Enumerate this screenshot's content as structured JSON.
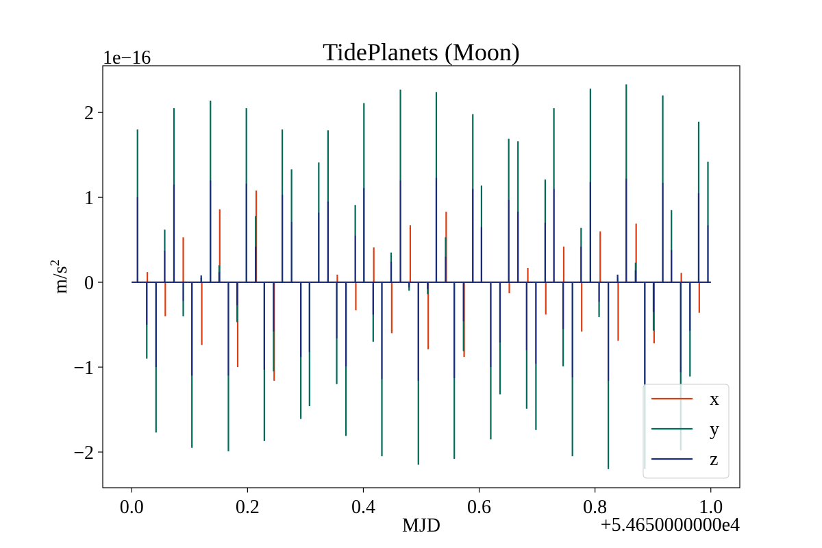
{
  "chart_data": {
    "type": "line",
    "title": "TidePlanets (Moon)",
    "xlabel": "MJD",
    "ylabel": "m/s",
    "ylabel_sup": "2",
    "x_offset_label": "+5.4650000000e4",
    "y_scale_label": "1e−16",
    "xlim": [
      -0.05,
      1.05
    ],
    "ylim": [
      -2.42,
      2.55
    ],
    "x_ticks": [
      0.0,
      0.2,
      0.4,
      0.6,
      0.8,
      1.0
    ],
    "x_tick_labels": [
      "0.0",
      "0.2",
      "0.4",
      "0.6",
      "0.8",
      "1.0"
    ],
    "y_ticks": [
      -2,
      -1,
      0,
      1,
      2
    ],
    "y_tick_labels": [
      "−2",
      "−1",
      "0",
      "1",
      "2"
    ],
    "grid": false,
    "legend_position": "lower-right",
    "series": [
      {
        "name": "x",
        "color": "#dd3d12",
        "spikes": [
          {
            "x": 0.027,
            "y": 0.12
          },
          {
            "x": 0.058,
            "y": -0.4
          },
          {
            "x": 0.089,
            "y": 0.53
          },
          {
            "x": 0.121,
            "y": -0.74
          },
          {
            "x": 0.152,
            "y": 0.86
          },
          {
            "x": 0.183,
            "y": -1.0
          },
          {
            "x": 0.215,
            "y": 1.08
          },
          {
            "x": 0.246,
            "y": -1.16
          },
          {
            "x": 0.355,
            "y": 0.09
          },
          {
            "x": 0.387,
            "y": -0.33
          },
          {
            "x": 0.418,
            "y": 0.41
          },
          {
            "x": 0.449,
            "y": -0.6
          },
          {
            "x": 0.481,
            "y": 0.67
          },
          {
            "x": 0.512,
            "y": -0.79
          },
          {
            "x": 0.543,
            "y": 0.83
          },
          {
            "x": 0.574,
            "y": -0.88
          },
          {
            "x": 0.652,
            "y": -0.13
          },
          {
            "x": 0.684,
            "y": 0.17
          },
          {
            "x": 0.715,
            "y": -0.38
          },
          {
            "x": 0.746,
            "y": 0.42
          },
          {
            "x": 0.777,
            "y": -0.58
          },
          {
            "x": 0.809,
            "y": 0.6
          },
          {
            "x": 0.84,
            "y": -0.69
          },
          {
            "x": 0.871,
            "y": 0.69
          },
          {
            "x": 0.902,
            "y": -0.72
          },
          {
            "x": 0.949,
            "y": 0.11
          },
          {
            "x": 0.98,
            "y": -0.36
          }
        ]
      },
      {
        "name": "y",
        "color": "#006b5a",
        "spikes": [
          {
            "x": 0.01,
            "y": 1.8
          },
          {
            "x": 0.026,
            "y": -0.9
          },
          {
            "x": 0.042,
            "y": -1.77
          },
          {
            "x": 0.057,
            "y": 0.62
          },
          {
            "x": 0.073,
            "y": 2.05
          },
          {
            "x": 0.089,
            "y": -0.4
          },
          {
            "x": 0.104,
            "y": -1.95
          },
          {
            "x": 0.12,
            "y": 0.05
          },
          {
            "x": 0.136,
            "y": 2.14
          },
          {
            "x": 0.151,
            "y": 0.2
          },
          {
            "x": 0.167,
            "y": -1.99
          },
          {
            "x": 0.182,
            "y": -0.47
          },
          {
            "x": 0.198,
            "y": 2.05
          },
          {
            "x": 0.214,
            "y": 0.78
          },
          {
            "x": 0.229,
            "y": -1.87
          },
          {
            "x": 0.245,
            "y": -1.05
          },
          {
            "x": 0.26,
            "y": 1.8
          },
          {
            "x": 0.276,
            "y": 1.33
          },
          {
            "x": 0.292,
            "y": -1.61
          },
          {
            "x": 0.307,
            "y": -1.46
          },
          {
            "x": 0.323,
            "y": 1.41
          },
          {
            "x": 0.339,
            "y": 1.79
          },
          {
            "x": 0.354,
            "y": -1.2
          },
          {
            "x": 0.37,
            "y": -1.81
          },
          {
            "x": 0.386,
            "y": 0.91
          },
          {
            "x": 0.401,
            "y": 2.11
          },
          {
            "x": 0.417,
            "y": -0.7
          },
          {
            "x": 0.432,
            "y": -2.05
          },
          {
            "x": 0.448,
            "y": 0.35
          },
          {
            "x": 0.464,
            "y": 2.27
          },
          {
            "x": 0.479,
            "y": -0.1
          },
          {
            "x": 0.495,
            "y": -2.15
          },
          {
            "x": 0.511,
            "y": -0.14
          },
          {
            "x": 0.526,
            "y": 2.24
          },
          {
            "x": 0.542,
            "y": 0.53
          },
          {
            "x": 0.557,
            "y": -2.08
          },
          {
            "x": 0.573,
            "y": -0.81
          },
          {
            "x": 0.589,
            "y": 1.98
          },
          {
            "x": 0.604,
            "y": 1.14
          },
          {
            "x": 0.62,
            "y": -1.85
          },
          {
            "x": 0.636,
            "y": -1.32
          },
          {
            "x": 0.651,
            "y": 1.69
          },
          {
            "x": 0.667,
            "y": 1.66
          },
          {
            "x": 0.682,
            "y": -1.49
          },
          {
            "x": 0.698,
            "y": -1.74
          },
          {
            "x": 0.714,
            "y": 1.21
          },
          {
            "x": 0.729,
            "y": 2.05
          },
          {
            "x": 0.745,
            "y": -0.99
          },
          {
            "x": 0.761,
            "y": -2.05
          },
          {
            "x": 0.776,
            "y": 0.64
          },
          {
            "x": 0.792,
            "y": 2.28
          },
          {
            "x": 0.807,
            "y": -0.41
          },
          {
            "x": 0.823,
            "y": -2.2
          },
          {
            "x": 0.839,
            "y": 0.05
          },
          {
            "x": 0.854,
            "y": 2.33
          },
          {
            "x": 0.87,
            "y": 0.23
          },
          {
            "x": 0.886,
            "y": -2.2
          },
          {
            "x": 0.901,
            "y": -0.57
          },
          {
            "x": 0.917,
            "y": 2.2
          },
          {
            "x": 0.932,
            "y": 0.85
          },
          {
            "x": 0.948,
            "y": -1.98
          },
          {
            "x": 0.964,
            "y": -1.11
          },
          {
            "x": 0.979,
            "y": 1.89
          },
          {
            "x": 0.995,
            "y": 1.42
          }
        ]
      },
      {
        "name": "z",
        "color": "#1c2a7a",
        "spikes": [
          {
            "x": 0.01,
            "y": 1.0
          },
          {
            "x": 0.026,
            "y": -0.5
          },
          {
            "x": 0.042,
            "y": -1.0
          },
          {
            "x": 0.057,
            "y": 0.37
          },
          {
            "x": 0.073,
            "y": 1.15
          },
          {
            "x": 0.089,
            "y": -0.22
          },
          {
            "x": 0.104,
            "y": -1.1
          },
          {
            "x": 0.12,
            "y": 0.08
          },
          {
            "x": 0.136,
            "y": 1.2
          },
          {
            "x": 0.151,
            "y": 0.12
          },
          {
            "x": 0.167,
            "y": -1.1
          },
          {
            "x": 0.182,
            "y": -0.27
          },
          {
            "x": 0.198,
            "y": 1.16
          },
          {
            "x": 0.214,
            "y": 0.42
          },
          {
            "x": 0.229,
            "y": -1.03
          },
          {
            "x": 0.245,
            "y": -0.58
          },
          {
            "x": 0.26,
            "y": 1.03
          },
          {
            "x": 0.276,
            "y": 0.71
          },
          {
            "x": 0.292,
            "y": -0.88
          },
          {
            "x": 0.307,
            "y": -0.82
          },
          {
            "x": 0.323,
            "y": 0.82
          },
          {
            "x": 0.339,
            "y": 0.95
          },
          {
            "x": 0.354,
            "y": -0.66
          },
          {
            "x": 0.37,
            "y": -0.99
          },
          {
            "x": 0.386,
            "y": 0.55
          },
          {
            "x": 0.401,
            "y": 1.11
          },
          {
            "x": 0.417,
            "y": -0.38
          },
          {
            "x": 0.432,
            "y": -1.14
          },
          {
            "x": 0.448,
            "y": 0.24
          },
          {
            "x": 0.464,
            "y": 1.2
          },
          {
            "x": 0.479,
            "y": -0.06
          },
          {
            "x": 0.495,
            "y": -1.16
          },
          {
            "x": 0.511,
            "y": -0.08
          },
          {
            "x": 0.526,
            "y": 1.23
          },
          {
            "x": 0.542,
            "y": 0.3
          },
          {
            "x": 0.557,
            "y": -1.13
          },
          {
            "x": 0.573,
            "y": -0.46
          },
          {
            "x": 0.589,
            "y": 1.1
          },
          {
            "x": 0.604,
            "y": 0.65
          },
          {
            "x": 0.62,
            "y": -1.0
          },
          {
            "x": 0.636,
            "y": -0.71
          },
          {
            "x": 0.651,
            "y": 0.97
          },
          {
            "x": 0.667,
            "y": 0.83
          },
          {
            "x": 0.682,
            "y": -0.8
          },
          {
            "x": 0.698,
            "y": -0.96
          },
          {
            "x": 0.714,
            "y": 0.7
          },
          {
            "x": 0.729,
            "y": 1.1
          },
          {
            "x": 0.745,
            "y": -0.55
          },
          {
            "x": 0.761,
            "y": -1.12
          },
          {
            "x": 0.776,
            "y": 0.42
          },
          {
            "x": 0.792,
            "y": 1.18
          },
          {
            "x": 0.807,
            "y": -0.23
          },
          {
            "x": 0.823,
            "y": -1.16
          },
          {
            "x": 0.839,
            "y": 0.09
          },
          {
            "x": 0.854,
            "y": 1.22
          },
          {
            "x": 0.87,
            "y": 0.14
          },
          {
            "x": 0.886,
            "y": -1.2
          },
          {
            "x": 0.901,
            "y": -0.35
          },
          {
            "x": 0.917,
            "y": 1.17
          },
          {
            "x": 0.932,
            "y": 0.38
          },
          {
            "x": 0.948,
            "y": -1.06
          },
          {
            "x": 0.964,
            "y": -0.57
          },
          {
            "x": 0.979,
            "y": 1.05
          },
          {
            "x": 0.995,
            "y": 0.67
          }
        ]
      }
    ]
  }
}
